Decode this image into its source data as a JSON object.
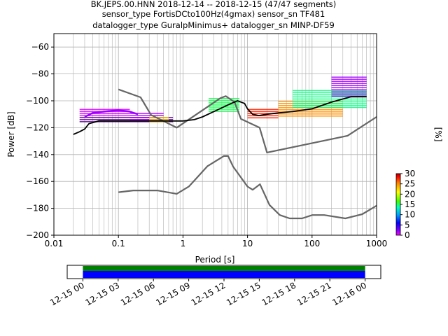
{
  "title": {
    "line1": "BK.JEPS.00.HNN   2018-12-14 -- 2018-12-15  (47/47 segments)",
    "line2": "sensor_type FortisDCto100Hz(4gmax) sensor_sn TF481",
    "line3": "datalogger_type GuralpMinimus+ datalogger_sn MINP-DF59"
  },
  "colorbar": {
    "label": "[%]",
    "ticks": [
      "0",
      "5",
      "10",
      "15",
      "20",
      "25",
      "30"
    ],
    "range": [
      0,
      30
    ]
  },
  "chart_data": [
    {
      "type": "heatmap",
      "title": "BK.JEPS.00.HNN   2018-12-14 -- 2018-12-15  (47/47 segments)",
      "xlabel": "Period [s]",
      "ylabel": "Power [dB]",
      "xscale": "log",
      "xlim": [
        0.01,
        1000
      ],
      "ylim": [
        -200,
        -50
      ],
      "xtick_labels": [
        "0.01",
        "0.1",
        "1",
        "10",
        "100",
        "1000"
      ],
      "ytick_labels": [
        "−60",
        "−80",
        "−100",
        "−120",
        "−140",
        "−160",
        "−180",
        "−200"
      ],
      "ytick_values": [
        -60,
        -80,
        -100,
        -120,
        -140,
        -160,
        -180,
        -200
      ],
      "grid": true,
      "series": [
        {
          "name": "NHNM",
          "color": "#666666",
          "x": [
            0.1,
            0.22,
            0.32,
            0.8,
            3.8,
            4.6,
            6.3,
            7.9,
            15.4,
            20,
            354.8,
            1000
          ],
          "y": [
            -91.5,
            -97.4,
            -110.5,
            -120,
            -98,
            -96.5,
            -101,
            -113.5,
            -120,
            -138.5,
            -126,
            -112
          ]
        },
        {
          "name": "NLNM",
          "color": "#666666",
          "x": [
            0.1,
            0.17,
            0.4,
            0.8,
            1.24,
            2.4,
            4.3,
            5.0,
            6.0,
            10.0,
            12.0,
            15.6,
            21.9,
            31.6,
            45,
            70,
            101,
            154,
            328,
            600,
            1000
          ],
          "y": [
            -168,
            -166.7,
            -166.7,
            -169.2,
            -163.7,
            -148.6,
            -141.1,
            -141.1,
            -149,
            -163.8,
            -166.2,
            -162.1,
            -177.5,
            -185,
            -187.5,
            -187.5,
            -185,
            -185,
            -187.5,
            -184.4,
            -178
          ]
        },
        {
          "name": "mode",
          "color": "#000000",
          "x": [
            0.02,
            0.025,
            0.03,
            0.035,
            0.05,
            0.1,
            0.3,
            0.6,
            1.0,
            1.5,
            2.0,
            3.0,
            5.0,
            7.0,
            9.0,
            10.0,
            12.0,
            15.0,
            20.0,
            30.0,
            50.0,
            100.0,
            200.0,
            400.0,
            700.0
          ],
          "y": [
            -125,
            -123,
            -121,
            -117,
            -115,
            -115,
            -115,
            -115,
            -115,
            -114,
            -112,
            -108,
            -103,
            -100,
            -102,
            -106,
            -110,
            -111,
            -110,
            -109,
            -108,
            -106,
            -101,
            -97,
            -97
          ]
        },
        {
          "name": "percentile",
          "color": "#9b00ff",
          "x": [
            0.03,
            0.04,
            0.06,
            0.1,
            0.15,
            0.2
          ],
          "y": [
            -112,
            -109,
            -108,
            -107,
            -108,
            -110
          ]
        }
      ],
      "heatmap_bands": [
        {
          "x": [
            0.025,
            0.7
          ],
          "y": [
            -116,
            -112
          ],
          "color": "#5a008c"
        },
        {
          "x": [
            0.025,
            0.15
          ],
          "y": [
            -111,
            -106
          ],
          "color": "#d400ff"
        },
        {
          "x": [
            0.15,
            0.5
          ],
          "y": [
            -114,
            -109
          ],
          "color": "#b000ff"
        },
        {
          "x": [
            0.3,
            0.6
          ],
          "y": [
            -116,
            -112
          ],
          "color": "#ffd000"
        },
        {
          "x": [
            2.5,
            7.5
          ],
          "y": [
            -108,
            -98
          ],
          "color": "#00ff40"
        },
        {
          "x": [
            10,
            30
          ],
          "y": [
            -113,
            -106
          ],
          "color": "#ff2000"
        },
        {
          "x": [
            30,
            300
          ],
          "y": [
            -112,
            -100
          ],
          "color": "#ff9000"
        },
        {
          "x": [
            50,
            700
          ],
          "y": [
            -105,
            -92
          ],
          "color": "#00ff80"
        },
        {
          "x": [
            200,
            700
          ],
          "y": [
            -97,
            -82
          ],
          "color": "#a000ff"
        }
      ]
    },
    {
      "type": "bar",
      "xtick_labels": [
        "12-15 00",
        "12-15 03",
        "12-15 06",
        "12-15 09",
        "12-15 12",
        "12-15 15",
        "12-15 18",
        "12-15 21",
        "12-16 00"
      ],
      "xlim": [
        "12-14 22:40",
        "12-16 01:20"
      ],
      "series": [
        {
          "color": "#008000",
          "x": [
            "12-15 00:00",
            "12-15 24:00"
          ]
        },
        {
          "color": "#0000ff",
          "x": [
            "12-15 00:00",
            "12-15 24:00"
          ]
        }
      ]
    }
  ]
}
